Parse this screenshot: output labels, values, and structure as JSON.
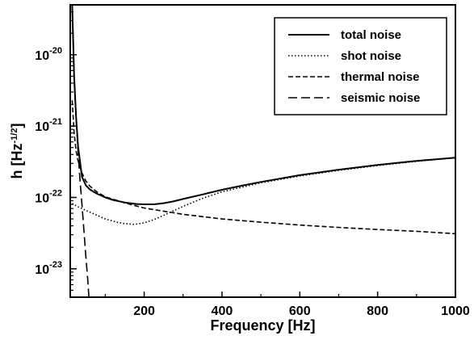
{
  "chart_data": {
    "type": "line",
    "xlabel": "Frequency [Hz]",
    "ylabel": "h [Hz^-1/2]",
    "ylabel_parts": {
      "base": "h [Hz",
      "exponent": "-1/2",
      "tail": "]"
    },
    "x_scale": "linear",
    "y_scale": "log",
    "xlim": [
      10,
      1000
    ],
    "ylim": [
      4e-24,
      5e-20
    ],
    "x_ticks": [
      200,
      400,
      600,
      800,
      1000
    ],
    "x_tick_labels": [
      "200",
      "400",
      "600",
      "800",
      "1000"
    ],
    "y_ticks": [
      1e-23,
      1e-22,
      1e-21,
      1e-20
    ],
    "y_tick_labels": [
      {
        "base": "10",
        "exp": "-23"
      },
      {
        "base": "10",
        "exp": "-22"
      },
      {
        "base": "10",
        "exp": "-21"
      },
      {
        "base": "10",
        "exp": "-20"
      }
    ],
    "grid": false,
    "legend_position": "top-right",
    "series": [
      {
        "name": "total noise",
        "style": "solid",
        "x": [
          15,
          20,
          25,
          30,
          40,
          50,
          60,
          70,
          80,
          100,
          120,
          150,
          180,
          200,
          225,
          250,
          275,
          300,
          350,
          400,
          450,
          500,
          600,
          700,
          800,
          900,
          1000
        ],
        "y": [
          5e-20,
          5e-21,
          1.35e-21,
          5.3e-22,
          1.95e-22,
          1.48e-22,
          1.3e-22,
          1.2e-22,
          1.12e-22,
          1e-22,
          9.2e-23,
          8.5e-23,
          8.1e-23,
          8e-23,
          8e-23,
          8.3e-23,
          8.8e-23,
          9.5e-23,
          1.1e-22,
          1.28e-22,
          1.46e-22,
          1.65e-22,
          2.05e-22,
          2.45e-22,
          2.85e-22,
          3.25e-22,
          3.6e-22
        ]
      },
      {
        "name": "shot noise",
        "style": "dotted",
        "x": [
          15,
          30,
          50,
          70,
          100,
          130,
          150,
          175,
          200,
          225,
          250,
          300,
          350,
          400,
          500,
          600,
          700,
          800,
          900,
          1000
        ],
        "y": [
          8.2e-23,
          7.4e-23,
          6.6e-23,
          5.9e-23,
          5e-23,
          4.5e-23,
          4.3e-23,
          4.2e-23,
          4.4e-23,
          4.9e-23,
          5.6e-23,
          7.5e-23,
          9.7e-23,
          1.2e-22,
          1.6e-22,
          2e-22,
          2.4e-22,
          2.8e-22,
          3.2e-22,
          3.6e-22
        ]
      },
      {
        "name": "thermal noise",
        "style": "dashed",
        "x": [
          15,
          20,
          25,
          30,
          40,
          50,
          60,
          70,
          80,
          100,
          150,
          200,
          300,
          400,
          500,
          600,
          700,
          800,
          900,
          1000
        ],
        "y": [
          2.3e-21,
          8e-22,
          4.5e-22,
          3.3e-22,
          2.2e-22,
          1.7e-22,
          1.45e-22,
          1.3e-22,
          1.18e-22,
          1.02e-22,
          8.4e-23,
          7.1e-23,
          5.8e-23,
          5e-23,
          4.5e-23,
          4.1e-23,
          3.8e-23,
          3.55e-23,
          3.35e-23,
          3.1e-23
        ]
      },
      {
        "name": "seismic noise",
        "style": "longdash",
        "x": [
          15,
          20,
          25,
          30,
          35,
          40,
          45,
          50,
          55,
          58
        ],
        "y": [
          5e-20,
          5e-21,
          1.35e-21,
          4.5e-22,
          1.8e-22,
          8e-23,
          3.5e-23,
          1.5e-23,
          7e-24,
          4e-24
        ]
      }
    ]
  }
}
